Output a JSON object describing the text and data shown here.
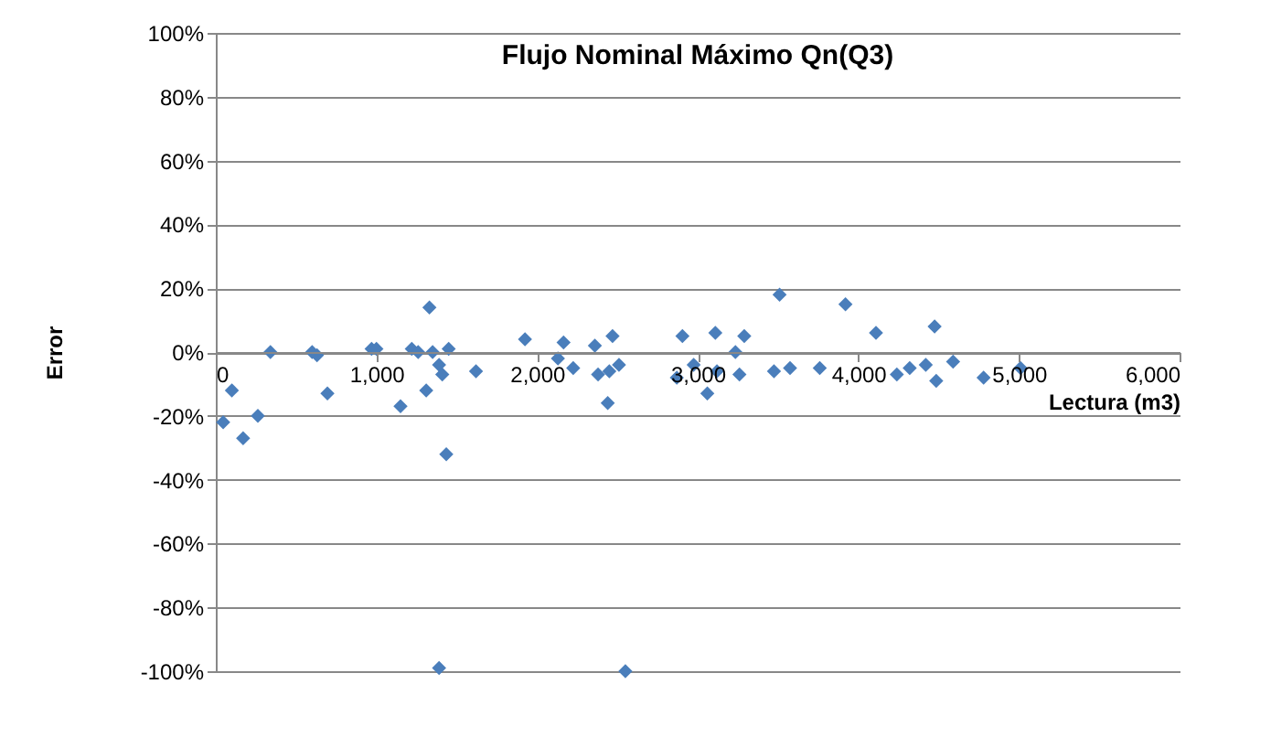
{
  "chart_data": {
    "type": "scatter",
    "title": "Flujo Nominal Máximo Qn(Q3)",
    "xlabel": "Lectura (m3)",
    "ylabel": "Error",
    "x": [
      46,
      100,
      170,
      262,
      340,
      600,
      630,
      695,
      970,
      1000,
      1150,
      1220,
      1260,
      1330,
      1310,
      1350,
      1390,
      1410,
      1450,
      1435,
      1620,
      1925,
      2165,
      2130,
      2225,
      2360,
      2380,
      2470,
      2450,
      2510,
      2440,
      2905,
      2870,
      2975,
      3110,
      3120,
      3060,
      3290,
      3235,
      3260,
      3510,
      3475,
      3575,
      3760,
      3920,
      4110,
      4240,
      4320,
      4420,
      4475,
      4485,
      4590,
      4780,
      5010,
      1390,
      2550
    ],
    "series": [
      {
        "color": "#4a7ebb",
        "values": [
          -22,
          -12,
          -27,
          -20,
          0,
          0,
          -1,
          -13,
          1,
          1,
          -17,
          1,
          0,
          14,
          -12,
          0,
          -4,
          -7,
          1,
          -32,
          -6,
          4,
          3,
          -2,
          -5,
          2,
          -7,
          5,
          -6,
          -4,
          -16,
          5,
          -8,
          -4,
          6,
          -6,
          -13,
          5,
          0,
          -7,
          18,
          -6,
          -5,
          -5,
          15,
          6,
          -7,
          -5,
          -4,
          8,
          -9,
          -3,
          -8,
          -5,
          -99,
          -100
        ]
      }
    ],
    "xlim": [
      0,
      6000
    ],
    "xticks": [
      0,
      {
        "value": 1000,
        "label": "1,000"
      },
      {
        "value": 2000,
        "label": "2,000"
      },
      {
        "value": 3000,
        "label": "3,000"
      },
      {
        "value": 4000,
        "label": "4,000"
      },
      {
        "value": 5000,
        "label": "5,000"
      },
      {
        "value": 6000,
        "label": "6,000"
      }
    ],
    "ylim": [
      -100,
      100
    ],
    "yticks": [
      {
        "value": -100,
        "label": "-100%"
      },
      {
        "value": -80,
        "label": "-80%"
      },
      {
        "value": -60,
        "label": "-60%"
      },
      {
        "value": -40,
        "label": "-40%"
      },
      {
        "value": -20,
        "label": "-20%"
      },
      {
        "value": 0,
        "label": "0%"
      },
      {
        "value": 20,
        "label": "20%"
      },
      {
        "value": 40,
        "label": "40%"
      },
      {
        "value": 60,
        "label": "60%"
      },
      {
        "value": 80,
        "label": "80%"
      },
      {
        "value": 100,
        "label": "100%"
      }
    ],
    "grid": "y",
    "marker": "diamond",
    "legend": false
  }
}
